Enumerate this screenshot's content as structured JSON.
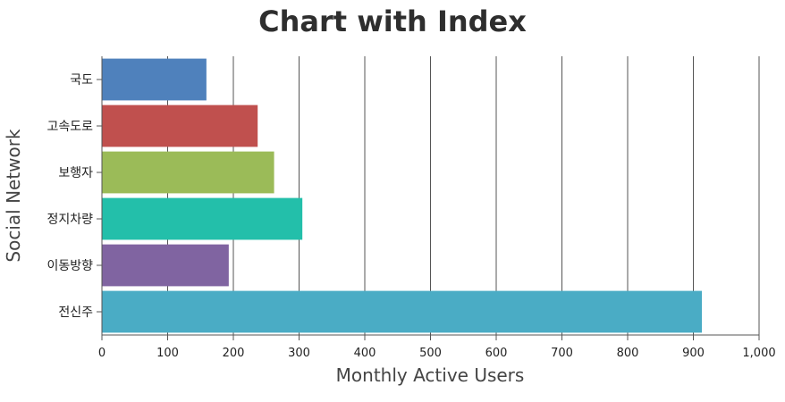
{
  "chart_data": {
    "type": "bar",
    "orientation": "horizontal",
    "title": "Chart with Index",
    "xlabel": "Monthly Active Users",
    "ylabel": "Social Network",
    "categories": [
      "국도",
      "고속도로",
      "보행자",
      "정지차량",
      "이동방향",
      "전신주"
    ],
    "values": [
      159,
      237,
      262,
      305,
      193,
      913
    ],
    "colors": [
      "#4f81bc",
      "#c0504e",
      "#9bbb58",
      "#23bfaa",
      "#8064a1",
      "#4aacc5"
    ],
    "xlim": [
      0,
      1000
    ],
    "x_ticks": [
      0,
      100,
      200,
      300,
      400,
      500,
      600,
      700,
      800,
      900,
      1000
    ],
    "x_tick_labels": [
      "0",
      "100",
      "200",
      "300",
      "400",
      "500",
      "600",
      "700",
      "800",
      "900",
      "1,000"
    ],
    "grid": "vertical"
  }
}
